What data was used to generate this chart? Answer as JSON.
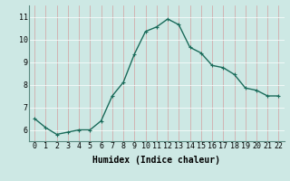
{
  "x": [
    0,
    1,
    2,
    3,
    4,
    5,
    6,
    7,
    8,
    9,
    10,
    11,
    12,
    13,
    14,
    15,
    16,
    17,
    18,
    19,
    20,
    21,
    22
  ],
  "y": [
    6.5,
    6.1,
    5.8,
    5.9,
    6.0,
    6.0,
    6.4,
    7.5,
    8.1,
    9.35,
    10.35,
    10.55,
    10.9,
    10.65,
    9.65,
    9.4,
    8.85,
    8.75,
    8.45,
    7.85,
    7.75,
    7.5,
    7.5
  ],
  "line_color": "#1a6b5a",
  "marker": "+",
  "marker_size": 3,
  "bg_color": "#cde8e4",
  "grid_color": "#b0d8d4",
  "xlabel": "Humidex (Indice chaleur)",
  "ylim": [
    5.5,
    11.5
  ],
  "xlim": [
    -0.5,
    22.5
  ],
  "yticks": [
    6,
    7,
    8,
    9,
    10,
    11
  ],
  "xticks": [
    0,
    1,
    2,
    3,
    4,
    5,
    6,
    7,
    8,
    9,
    10,
    11,
    12,
    13,
    14,
    15,
    16,
    17,
    18,
    19,
    20,
    21,
    22
  ],
  "tick_fontsize": 6,
  "xlabel_fontsize": 7,
  "grid_linewidth": 0.5,
  "line_width": 1.0
}
